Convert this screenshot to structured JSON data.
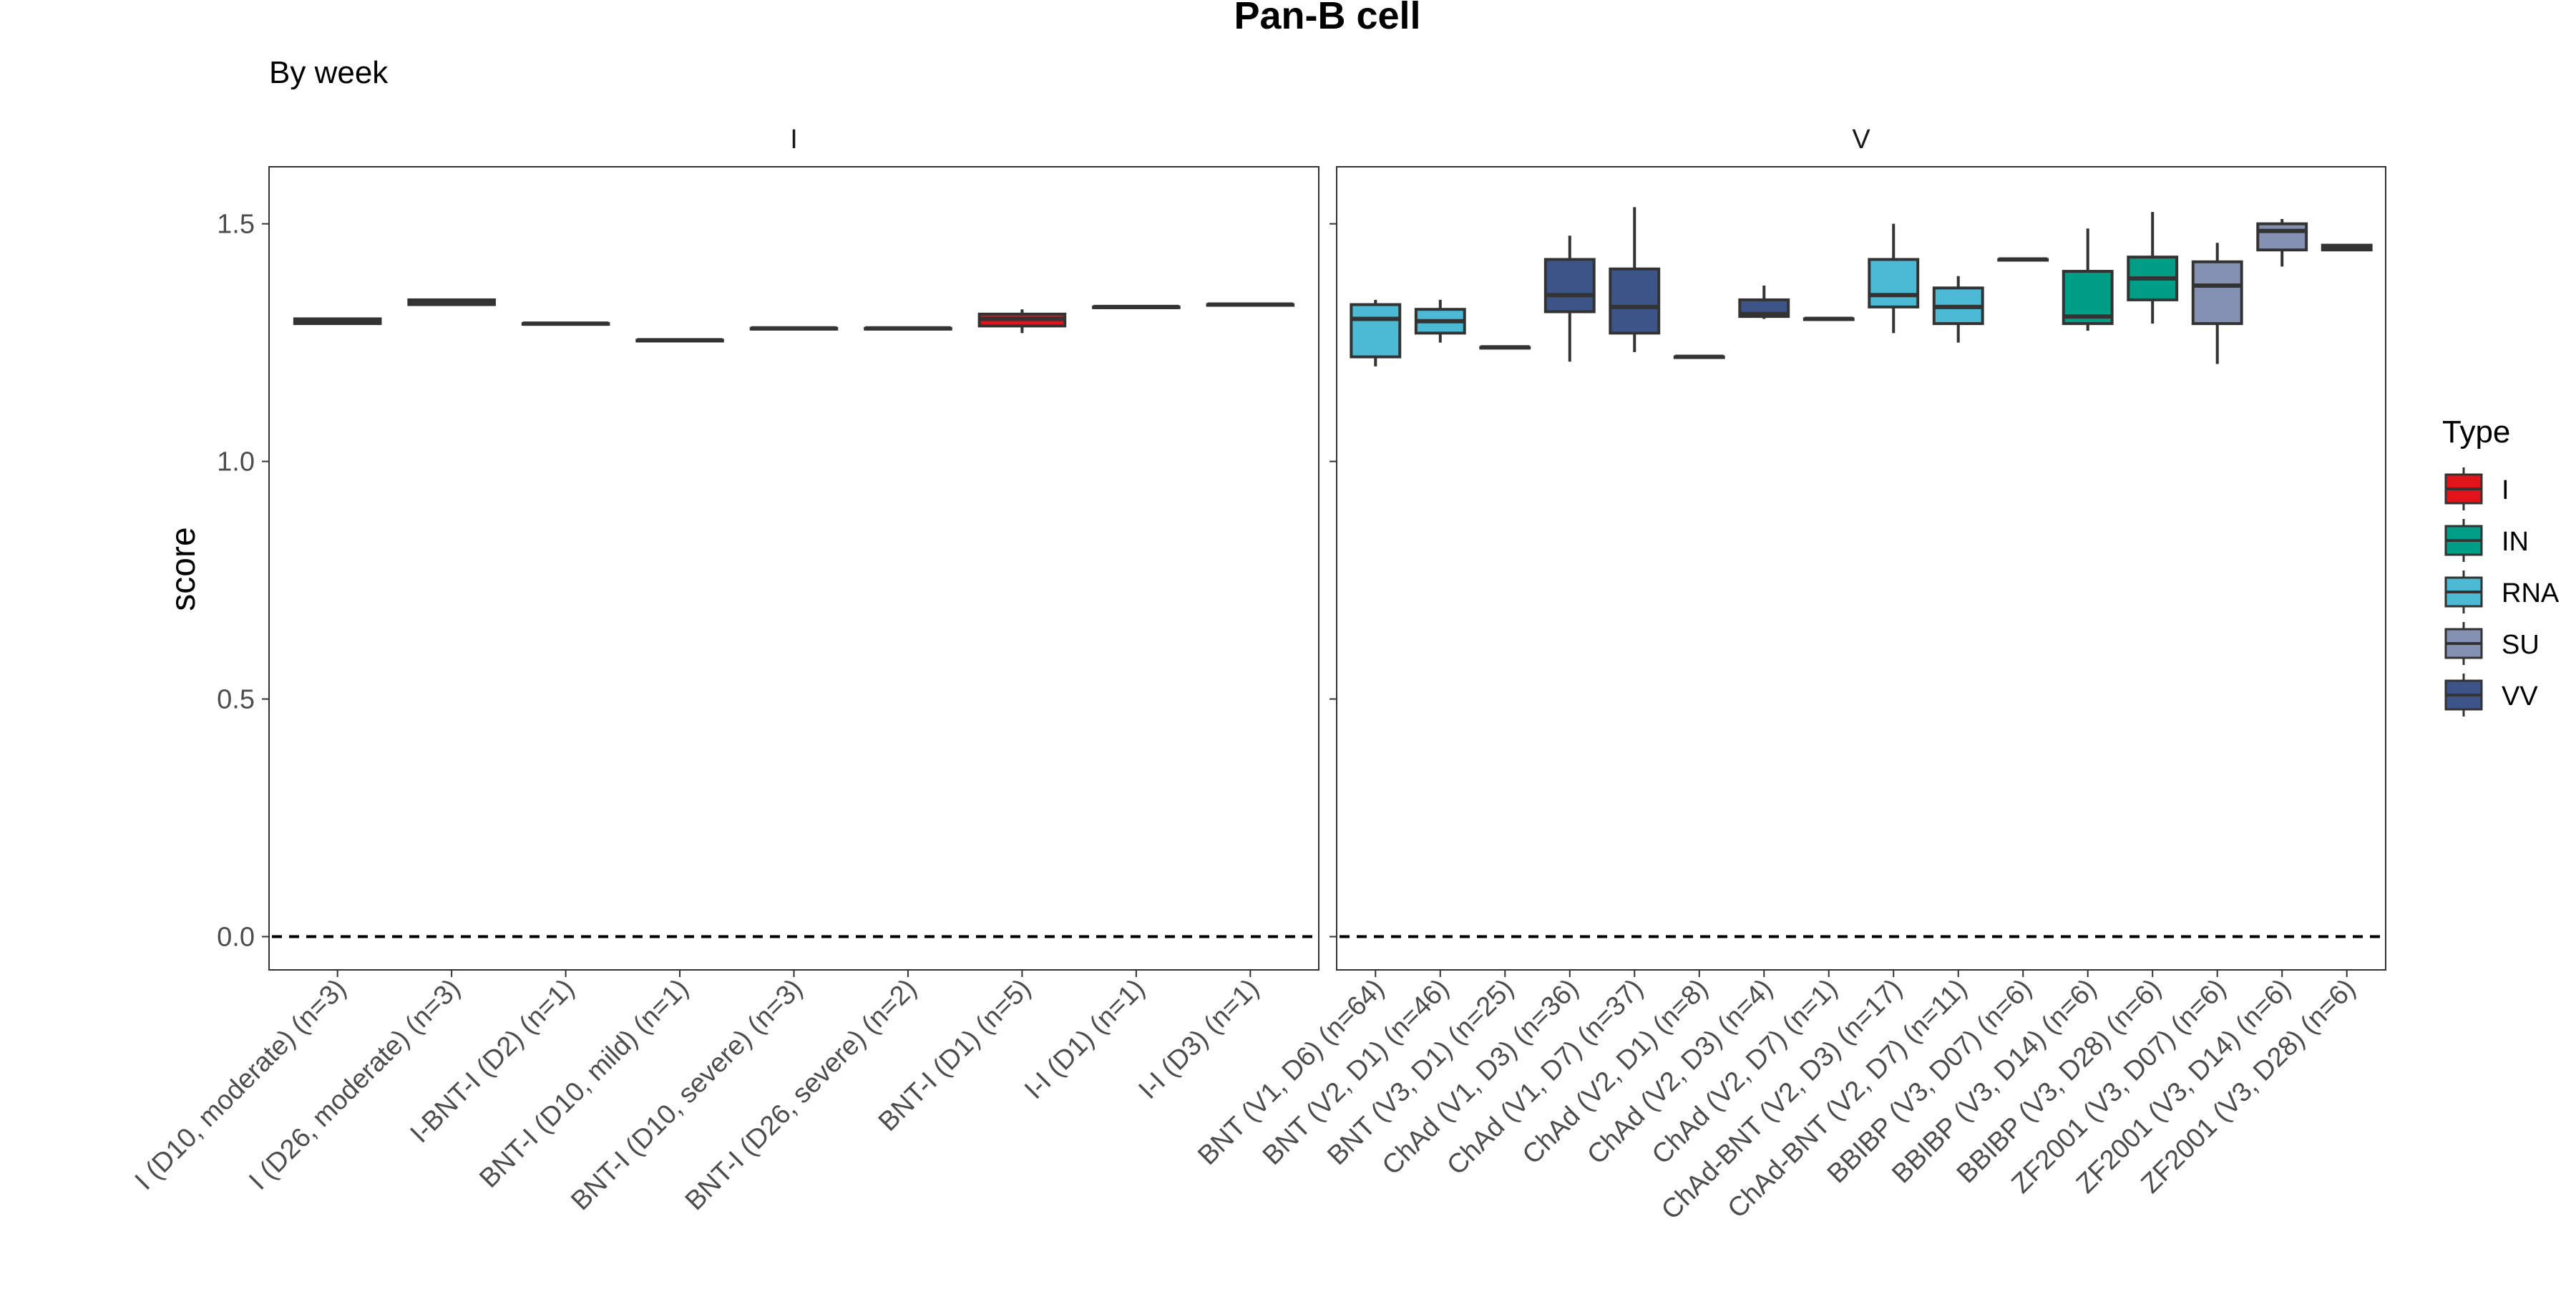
{
  "chart_data": {
    "type": "box",
    "title": "Pan-B cell",
    "subtitle": "By week",
    "ylabel": "score",
    "xlabel": "",
    "ylim": [
      -0.07,
      1.62
    ],
    "yticks": [
      0.0,
      0.5,
      1.0,
      1.5
    ],
    "reference_line": {
      "y": 0.0,
      "style": "dashed"
    },
    "legend": {
      "title": "Type",
      "position": "right",
      "items": [
        {
          "label": "I",
          "color": "#e2141b"
        },
        {
          "label": "IN",
          "color": "#009e87"
        },
        {
          "label": "RNA",
          "color": "#4cbad5"
        },
        {
          "label": "SU",
          "color": "#8491b3"
        },
        {
          "label": "VV",
          "color": "#3c5488"
        }
      ]
    },
    "panels": [
      {
        "name": "I",
        "groups": [
          {
            "label": "I (D10, moderate) (n=3)",
            "type": "I",
            "min": 1.29,
            "q1": 1.29,
            "median": 1.295,
            "q3": 1.3,
            "max": 1.3
          },
          {
            "label": "I (D26, moderate) (n=3)",
            "type": "I",
            "min": 1.33,
            "q1": 1.33,
            "median": 1.335,
            "q3": 1.34,
            "max": 1.34
          },
          {
            "label": "I-BNT-I (D2) (n=1)",
            "type": "I",
            "min": 1.29,
            "q1": 1.29,
            "median": 1.29,
            "q3": 1.29,
            "max": 1.29
          },
          {
            "label": "BNT-I (D10, mild) (n=1)",
            "type": "I",
            "min": 1.255,
            "q1": 1.255,
            "median": 1.255,
            "q3": 1.255,
            "max": 1.255
          },
          {
            "label": "BNT-I (D10, severe) (n=3)",
            "type": "I",
            "min": 1.28,
            "q1": 1.28,
            "median": 1.28,
            "q3": 1.28,
            "max": 1.28
          },
          {
            "label": "BNT-I (D26, severe) (n=2)",
            "type": "I",
            "min": 1.28,
            "q1": 1.28,
            "median": 1.28,
            "q3": 1.28,
            "max": 1.28
          },
          {
            "label": "BNT-I (D1) (n=5)",
            "type": "I",
            "min": 1.27,
            "q1": 1.285,
            "median": 1.3,
            "q3": 1.31,
            "max": 1.32
          },
          {
            "label": "I-I (D1) (n=1)",
            "type": "I",
            "min": 1.325,
            "q1": 1.325,
            "median": 1.325,
            "q3": 1.325,
            "max": 1.325
          },
          {
            "label": "I-I (D3) (n=1)",
            "type": "I",
            "min": 1.33,
            "q1": 1.33,
            "median": 1.33,
            "q3": 1.33,
            "max": 1.33
          }
        ]
      },
      {
        "name": "V",
        "groups": [
          {
            "label": "BNT (V1, D6) (n=64)",
            "type": "RNA",
            "min": 1.2,
            "q1": 1.22,
            "median": 1.3,
            "q3": 1.33,
            "max": 1.34
          },
          {
            "label": "BNT (V2, D1) (n=46)",
            "type": "RNA",
            "min": 1.25,
            "q1": 1.27,
            "median": 1.295,
            "q3": 1.32,
            "max": 1.34
          },
          {
            "label": "BNT (V3, D1) (n=25)",
            "type": "RNA",
            "min": 1.24,
            "q1": 1.24,
            "median": 1.24,
            "q3": 1.24,
            "max": 1.24
          },
          {
            "label": "ChAd (V1, D3) (n=36)",
            "type": "VV",
            "min": 1.21,
            "q1": 1.315,
            "median": 1.35,
            "q3": 1.425,
            "max": 1.475
          },
          {
            "label": "ChAd (V1, D7) (n=37)",
            "type": "VV",
            "min": 1.23,
            "q1": 1.27,
            "median": 1.325,
            "q3": 1.405,
            "max": 1.535
          },
          {
            "label": "ChAd (V2, D1) (n=8)",
            "type": "VV",
            "min": 1.22,
            "q1": 1.22,
            "median": 1.22,
            "q3": 1.22,
            "max": 1.22
          },
          {
            "label": "ChAd (V2, D3) (n=4)",
            "type": "VV",
            "min": 1.3,
            "q1": 1.305,
            "median": 1.31,
            "q3": 1.34,
            "max": 1.37
          },
          {
            "label": "ChAd (V2, D7) (n=1)",
            "type": "VV",
            "min": 1.3,
            "q1": 1.3,
            "median": 1.3,
            "q3": 1.3,
            "max": 1.3
          },
          {
            "label": "ChAd-BNT (V2, D3) (n=17)",
            "type": "RNA",
            "min": 1.27,
            "q1": 1.325,
            "median": 1.35,
            "q3": 1.425,
            "max": 1.5
          },
          {
            "label": "ChAd-BNT (V2, D7) (n=11)",
            "type": "RNA",
            "min": 1.25,
            "q1": 1.29,
            "median": 1.325,
            "q3": 1.365,
            "max": 1.39
          },
          {
            "label": "BBIBP (V3, D07) (n=6)",
            "type": "IN",
            "min": 1.425,
            "q1": 1.425,
            "median": 1.425,
            "q3": 1.425,
            "max": 1.425
          },
          {
            "label": "BBIBP (V3, D14) (n=6)",
            "type": "IN",
            "min": 1.275,
            "q1": 1.29,
            "median": 1.305,
            "q3": 1.4,
            "max": 1.49
          },
          {
            "label": "BBIBP (V3, D28) (n=6)",
            "type": "IN",
            "min": 1.29,
            "q1": 1.34,
            "median": 1.385,
            "q3": 1.43,
            "max": 1.525
          },
          {
            "label": "ZF2001 (V3, D07) (n=6)",
            "type": "SU",
            "min": 1.205,
            "q1": 1.29,
            "median": 1.37,
            "q3": 1.42,
            "max": 1.46
          },
          {
            "label": "ZF2001 (V3, D14) (n=6)",
            "type": "SU",
            "min": 1.41,
            "q1": 1.445,
            "median": 1.485,
            "q3": 1.5,
            "max": 1.51
          },
          {
            "label": "ZF2001 (V3, D28) (n=6)",
            "type": "SU",
            "min": 1.445,
            "q1": 1.445,
            "median": 1.45,
            "q3": 1.455,
            "max": 1.455
          }
        ]
      }
    ]
  }
}
